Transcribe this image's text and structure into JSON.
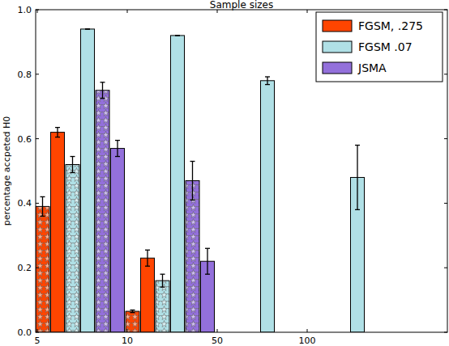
{
  "chart_data": {
    "type": "bar",
    "title": "Sample sizes",
    "y_label": "percentage accpeted H0",
    "categories": [
      "5",
      "10",
      "50",
      "100"
    ],
    "ylim": [
      0,
      1
    ],
    "yticks": [
      {
        "value": 0,
        "label": "0.0"
      },
      {
        "value": 0.2,
        "label": "0.2"
      },
      {
        "value": 0.4,
        "label": "0.4"
      },
      {
        "value": 0.6,
        "label": "0.6"
      },
      {
        "value": 0.8,
        "label": "0.8"
      },
      {
        "value": 1,
        "label": "1.0"
      }
    ],
    "legend": "upper right",
    "series": [
      {
        "name": "FGSM, .275",
        "color": "#ff4500",
        "values": [
          0.62,
          0.23,
          null,
          null
        ],
        "errors": [
          0.015,
          0.025,
          null,
          null
        ],
        "hatched_values": [
          0.39,
          0.065,
          null,
          null
        ],
        "hatched_errors": [
          0.03,
          0.004,
          null,
          null
        ]
      },
      {
        "name": "FGSM .07",
        "color": "#b0e0e6",
        "values": [
          0.94,
          0.92,
          0.78,
          0.48
        ],
        "errors": [
          0,
          0,
          0.012,
          0.1
        ],
        "hatched_values": [
          0.52,
          0.16,
          null,
          null
        ],
        "hatched_errors": [
          0.025,
          0.02,
          null,
          null
        ]
      },
      {
        "name": "JSMA",
        "color": "#9370db",
        "values": [
          0.57,
          0.22,
          null,
          null
        ],
        "errors": [
          0.025,
          0.04,
          null,
          null
        ],
        "hatched_values": [
          0.75,
          0.47,
          null,
          null
        ],
        "hatched_errors": [
          0.025,
          0.06,
          null,
          null
        ]
      }
    ]
  }
}
